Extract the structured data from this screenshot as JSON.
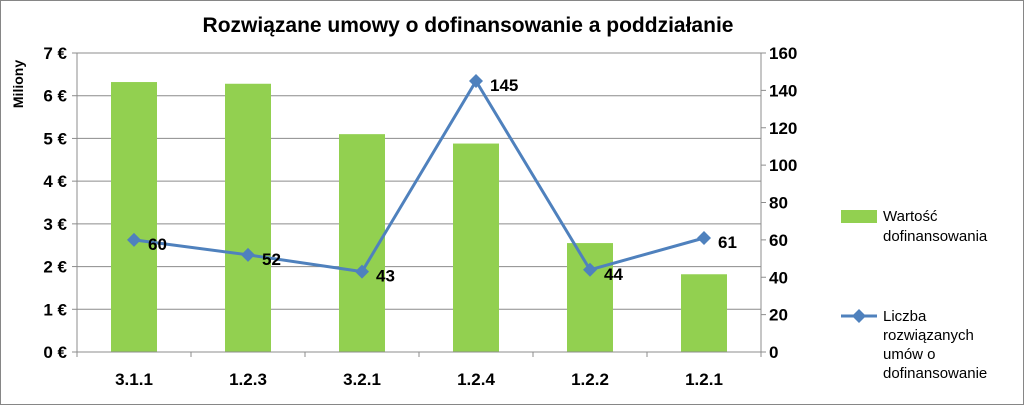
{
  "chart_data": {
    "type": "bar",
    "title": "Rozwiązane umowy o dofinansowanie a poddziałanie",
    "ylabel": "Miliony",
    "y2label": "",
    "xlabel": "",
    "categories": [
      "3.1.1",
      "1.2.3",
      "3.2.1",
      "1.2.4",
      "1.2.2",
      "1.2.1"
    ],
    "ylim": [
      0,
      7
    ],
    "y2lim": [
      0,
      160
    ],
    "y_ticks": [
      "0 €",
      "1 €",
      "2 €",
      "3 €",
      "4 €",
      "5 €",
      "6 €",
      "7 €"
    ],
    "y2_ticks": [
      "0",
      "20",
      "40",
      "60",
      "80",
      "100",
      "120",
      "140",
      "160"
    ],
    "grid": "horizontal",
    "legend_position": "right",
    "series": [
      {
        "name": "Wartość dofinansowania",
        "type": "bar",
        "axis": "left",
        "color": "#92d050",
        "values": [
          6.32,
          6.28,
          5.1,
          4.88,
          2.55,
          1.82
        ]
      },
      {
        "name": "Liczba rozwiązanych umów o dofinansowanie",
        "type": "line",
        "axis": "right",
        "color": "#4f81bd",
        "values": [
          60,
          52,
          43,
          145,
          44,
          61
        ],
        "data_labels": [
          "60",
          "52",
          "43",
          "145",
          "44",
          "61"
        ]
      }
    ],
    "legend": {
      "bar_lines": [
        "Wartość",
        "dofinansowania"
      ],
      "line_lines": [
        "Liczba",
        "rozwiązanych",
        "umów o",
        "dofinansowanie"
      ]
    }
  }
}
